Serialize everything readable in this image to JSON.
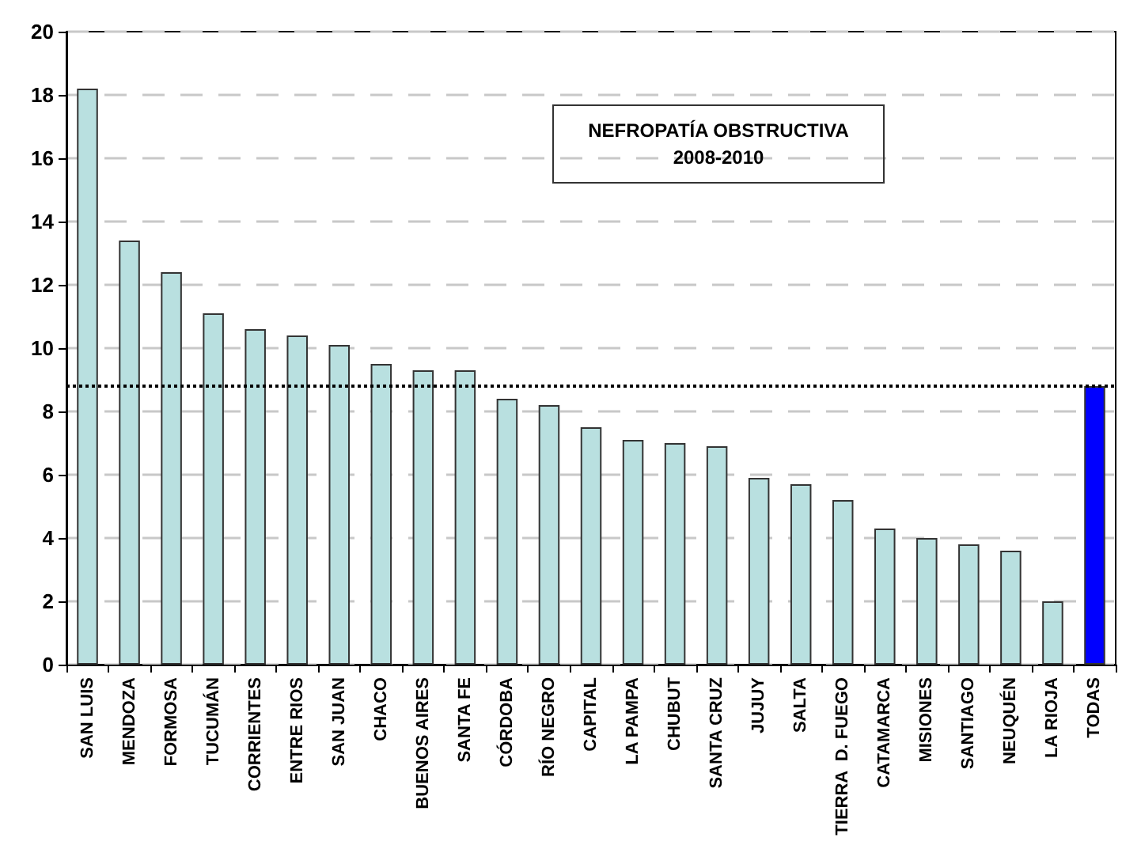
{
  "chart_data": {
    "type": "bar",
    "title": "NEFROPATÍA OBSTRUCTIVA\n2008-2010",
    "categories": [
      "SAN LUIS",
      "MENDOZA",
      "FORMOSA",
      "TUCUMÁN",
      "CORRIENTES",
      "ENTRE RIOS",
      "SAN JUAN",
      "CHACO",
      "BUENOS AIRES",
      "SANTA FE",
      "CÓRDOBA",
      "RÍO NEGRO",
      "CAPITAL",
      "LA PAMPA",
      "CHUBUT",
      "SANTA CRUZ",
      "JUJUY",
      "SALTA",
      "TIERRA  D. FUEGO",
      "CATAMARCA",
      "MISIONES",
      "SANTIAGO",
      "NEUQUÉN",
      "LA RIOJA",
      "TODAS"
    ],
    "values": [
      18.2,
      13.4,
      12.4,
      11.1,
      10.6,
      10.4,
      10.1,
      9.5,
      9.3,
      9.3,
      8.4,
      8.2,
      7.5,
      7.1,
      7.0,
      6.9,
      5.9,
      5.7,
      5.2,
      4.3,
      4.0,
      3.8,
      3.6,
      2.0,
      8.8
    ],
    "colors": [
      "#b9e0e0",
      "#b9e0e0",
      "#b9e0e0",
      "#b9e0e0",
      "#b9e0e0",
      "#b9e0e0",
      "#b9e0e0",
      "#b9e0e0",
      "#b9e0e0",
      "#b9e0e0",
      "#b9e0e0",
      "#b9e0e0",
      "#b9e0e0",
      "#b9e0e0",
      "#b9e0e0",
      "#b9e0e0",
      "#b9e0e0",
      "#b9e0e0",
      "#b9e0e0",
      "#b9e0e0",
      "#b9e0e0",
      "#b9e0e0",
      "#b9e0e0",
      "#b9e0e0",
      "#0000ff"
    ],
    "ylim": [
      0,
      20
    ],
    "yticks": [
      0,
      2,
      4,
      6,
      8,
      10,
      12,
      14,
      16,
      18,
      20
    ],
    "grid": "y",
    "ref_lines": [
      {
        "axis": "y",
        "value": 8.8,
        "color": "#000000",
        "line_style": "dotted"
      }
    ]
  }
}
